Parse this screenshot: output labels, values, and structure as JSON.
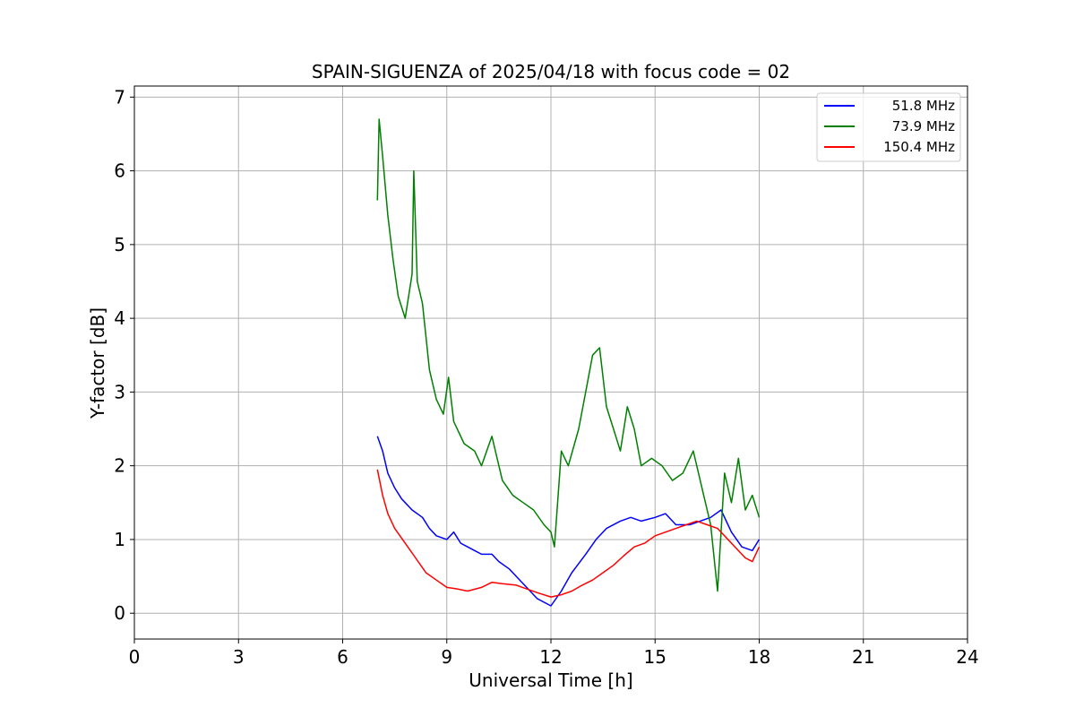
{
  "chart_data": {
    "type": "line",
    "title": "SPAIN-SIGUENZA of 2025/04/18 with focus code = 02",
    "xlabel": "Universal Time [h]",
    "ylabel": "Y-factor [dB]",
    "xlim": [
      0,
      24
    ],
    "ylim": [
      -0.35,
      7.15
    ],
    "x_ticks": [
      0,
      3,
      6,
      9,
      12,
      15,
      18,
      21,
      24
    ],
    "x_tick_labels": [
      "0",
      "3",
      "6",
      "9",
      "12",
      "15",
      "18",
      "21",
      "24"
    ],
    "y_ticks": [
      0,
      1,
      2,
      3,
      4,
      5,
      6,
      7
    ],
    "y_tick_labels": [
      "0",
      "1",
      "2",
      "3",
      "4",
      "5",
      "6",
      "7"
    ],
    "grid": true,
    "legend": "top-right",
    "series": [
      {
        "name": " 51.8 MHz",
        "color": "#0000ff",
        "points": [
          [
            7.0,
            2.4
          ],
          [
            7.15,
            2.2
          ],
          [
            7.3,
            1.9
          ],
          [
            7.5,
            1.7
          ],
          [
            7.7,
            1.55
          ],
          [
            8.0,
            1.4
          ],
          [
            8.3,
            1.3
          ],
          [
            8.5,
            1.15
          ],
          [
            8.7,
            1.05
          ],
          [
            9.0,
            1.0
          ],
          [
            9.2,
            1.1
          ],
          [
            9.4,
            0.95
          ],
          [
            9.6,
            0.9
          ],
          [
            9.8,
            0.85
          ],
          [
            10.0,
            0.8
          ],
          [
            10.3,
            0.8
          ],
          [
            10.5,
            0.7
          ],
          [
            10.8,
            0.6
          ],
          [
            11.0,
            0.5
          ],
          [
            11.3,
            0.35
          ],
          [
            11.6,
            0.2
          ],
          [
            12.0,
            0.1
          ],
          [
            12.3,
            0.3
          ],
          [
            12.6,
            0.55
          ],
          [
            13.0,
            0.8
          ],
          [
            13.3,
            1.0
          ],
          [
            13.6,
            1.15
          ],
          [
            14.0,
            1.25
          ],
          [
            14.3,
            1.3
          ],
          [
            14.6,
            1.25
          ],
          [
            15.0,
            1.3
          ],
          [
            15.3,
            1.35
          ],
          [
            15.6,
            1.2
          ],
          [
            16.0,
            1.2
          ],
          [
            16.3,
            1.25
          ],
          [
            16.6,
            1.3
          ],
          [
            16.9,
            1.4
          ],
          [
            17.2,
            1.1
          ],
          [
            17.5,
            0.9
          ],
          [
            17.8,
            0.85
          ],
          [
            18.0,
            1.0
          ]
        ]
      },
      {
        "name": " 73.9 MHz",
        "color": "#008000",
        "points": [
          [
            7.0,
            5.6
          ],
          [
            7.05,
            6.7
          ],
          [
            7.15,
            6.2
          ],
          [
            7.3,
            5.4
          ],
          [
            7.45,
            4.8
          ],
          [
            7.6,
            4.3
          ],
          [
            7.8,
            4.0
          ],
          [
            8.0,
            4.6
          ],
          [
            8.05,
            6.0
          ],
          [
            8.15,
            4.5
          ],
          [
            8.3,
            4.2
          ],
          [
            8.5,
            3.3
          ],
          [
            8.7,
            2.9
          ],
          [
            8.9,
            2.7
          ],
          [
            9.05,
            3.2
          ],
          [
            9.2,
            2.6
          ],
          [
            9.5,
            2.3
          ],
          [
            9.8,
            2.2
          ],
          [
            10.0,
            2.0
          ],
          [
            10.3,
            2.4
          ],
          [
            10.6,
            1.8
          ],
          [
            10.9,
            1.6
          ],
          [
            11.2,
            1.5
          ],
          [
            11.5,
            1.4
          ],
          [
            11.8,
            1.2
          ],
          [
            12.0,
            1.1
          ],
          [
            12.1,
            0.9
          ],
          [
            12.3,
            2.2
          ],
          [
            12.5,
            2.0
          ],
          [
            12.8,
            2.5
          ],
          [
            13.0,
            3.0
          ],
          [
            13.2,
            3.5
          ],
          [
            13.4,
            3.6
          ],
          [
            13.6,
            2.8
          ],
          [
            13.8,
            2.5
          ],
          [
            14.0,
            2.2
          ],
          [
            14.2,
            2.8
          ],
          [
            14.4,
            2.5
          ],
          [
            14.6,
            2.0
          ],
          [
            14.9,
            2.1
          ],
          [
            15.2,
            2.0
          ],
          [
            15.5,
            1.8
          ],
          [
            15.8,
            1.9
          ],
          [
            16.1,
            2.2
          ],
          [
            16.4,
            1.6
          ],
          [
            16.6,
            1.2
          ],
          [
            16.8,
            0.3
          ],
          [
            17.0,
            1.9
          ],
          [
            17.2,
            1.5
          ],
          [
            17.4,
            2.1
          ],
          [
            17.6,
            1.4
          ],
          [
            17.8,
            1.6
          ],
          [
            18.0,
            1.3
          ]
        ]
      },
      {
        "name": "150.4 MHz",
        "color": "#ff0000",
        "points": [
          [
            7.0,
            1.95
          ],
          [
            7.15,
            1.6
          ],
          [
            7.3,
            1.35
          ],
          [
            7.5,
            1.15
          ],
          [
            7.8,
            0.95
          ],
          [
            8.1,
            0.75
          ],
          [
            8.4,
            0.55
          ],
          [
            8.7,
            0.45
          ],
          [
            9.0,
            0.35
          ],
          [
            9.3,
            0.33
          ],
          [
            9.6,
            0.3
          ],
          [
            10.0,
            0.35
          ],
          [
            10.3,
            0.42
          ],
          [
            10.6,
            0.4
          ],
          [
            11.0,
            0.38
          ],
          [
            11.3,
            0.33
          ],
          [
            11.6,
            0.28
          ],
          [
            12.0,
            0.22
          ],
          [
            12.3,
            0.25
          ],
          [
            12.6,
            0.3
          ],
          [
            12.9,
            0.38
          ],
          [
            13.2,
            0.45
          ],
          [
            13.5,
            0.55
          ],
          [
            13.8,
            0.65
          ],
          [
            14.1,
            0.78
          ],
          [
            14.4,
            0.9
          ],
          [
            14.7,
            0.95
          ],
          [
            15.0,
            1.05
          ],
          [
            15.3,
            1.1
          ],
          [
            15.6,
            1.15
          ],
          [
            15.9,
            1.2
          ],
          [
            16.2,
            1.25
          ],
          [
            16.5,
            1.2
          ],
          [
            16.8,
            1.15
          ],
          [
            17.0,
            1.05
          ],
          [
            17.3,
            0.9
          ],
          [
            17.6,
            0.75
          ],
          [
            17.8,
            0.7
          ],
          [
            18.0,
            0.9
          ]
        ]
      }
    ]
  }
}
